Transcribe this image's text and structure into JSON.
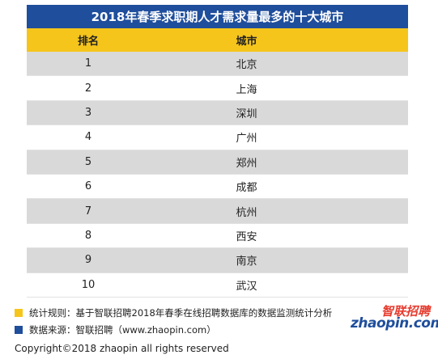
{
  "chart_data": {
    "type": "table",
    "title": "2018年春季求职期人才需求量最多的十大城市",
    "columns": [
      "排名",
      "城市"
    ],
    "rows": [
      [
        "1",
        "北京"
      ],
      [
        "2",
        "上海"
      ],
      [
        "3",
        "深圳"
      ],
      [
        "4",
        "广州"
      ],
      [
        "5",
        "郑州"
      ],
      [
        "6",
        "成都"
      ],
      [
        "7",
        "杭州"
      ],
      [
        "8",
        "西安"
      ],
      [
        "9",
        "南京"
      ],
      [
        "10",
        "武汉"
      ]
    ]
  },
  "notes": {
    "rule": "统计规则：基于智联招聘2018年春季在线招聘数据库的数据监测统计分析",
    "source": "数据来源：智联招聘（www.zhaopin.com）"
  },
  "logo": {
    "top_text": "智联招聘",
    "bottom_text": "zhaopin.com"
  },
  "copyright": "Copyright©2018 zhaopin all rights reserved",
  "colors": {
    "title_bg": "#1f4e9c",
    "header_bg": "#f5c51c",
    "alt_row": "#d9d9d9",
    "logo_red": "#e63b2e"
  }
}
